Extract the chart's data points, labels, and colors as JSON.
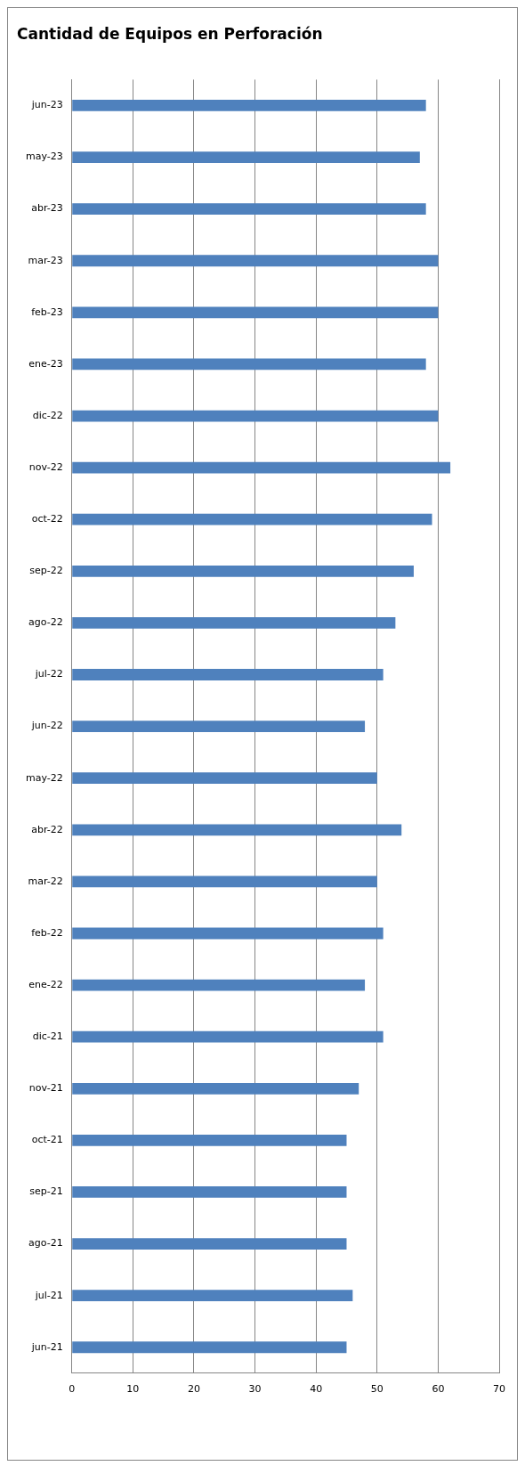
{
  "chart_data": {
    "type": "bar",
    "title": "Cantidad de Equipos en Perforación",
    "orientation": "horizontal",
    "categories": [
      "jun-23",
      "may-23",
      "abr-23",
      "mar-23",
      "feb-23",
      "ene-23",
      "dic-22",
      "nov-22",
      "oct-22",
      "sep-22",
      "ago-22",
      "jul-22",
      "jun-22",
      "may-22",
      "abr-22",
      "mar-22",
      "feb-22",
      "ene-22",
      "dic-21",
      "nov-21",
      "oct-21",
      "sep-21",
      "ago-21",
      "jul-21",
      "jun-21"
    ],
    "values": [
      58,
      57,
      58,
      60,
      60,
      58,
      60,
      62,
      59,
      56,
      53,
      51,
      48,
      50,
      54,
      50,
      51,
      48,
      51,
      47,
      45,
      45,
      45,
      46,
      45
    ],
    "color": "#4f81bd",
    "xlim": [
      0,
      70
    ],
    "xticks": [
      0,
      10,
      20,
      30,
      40,
      50,
      60,
      70
    ],
    "grid": "x",
    "legend": false
  }
}
